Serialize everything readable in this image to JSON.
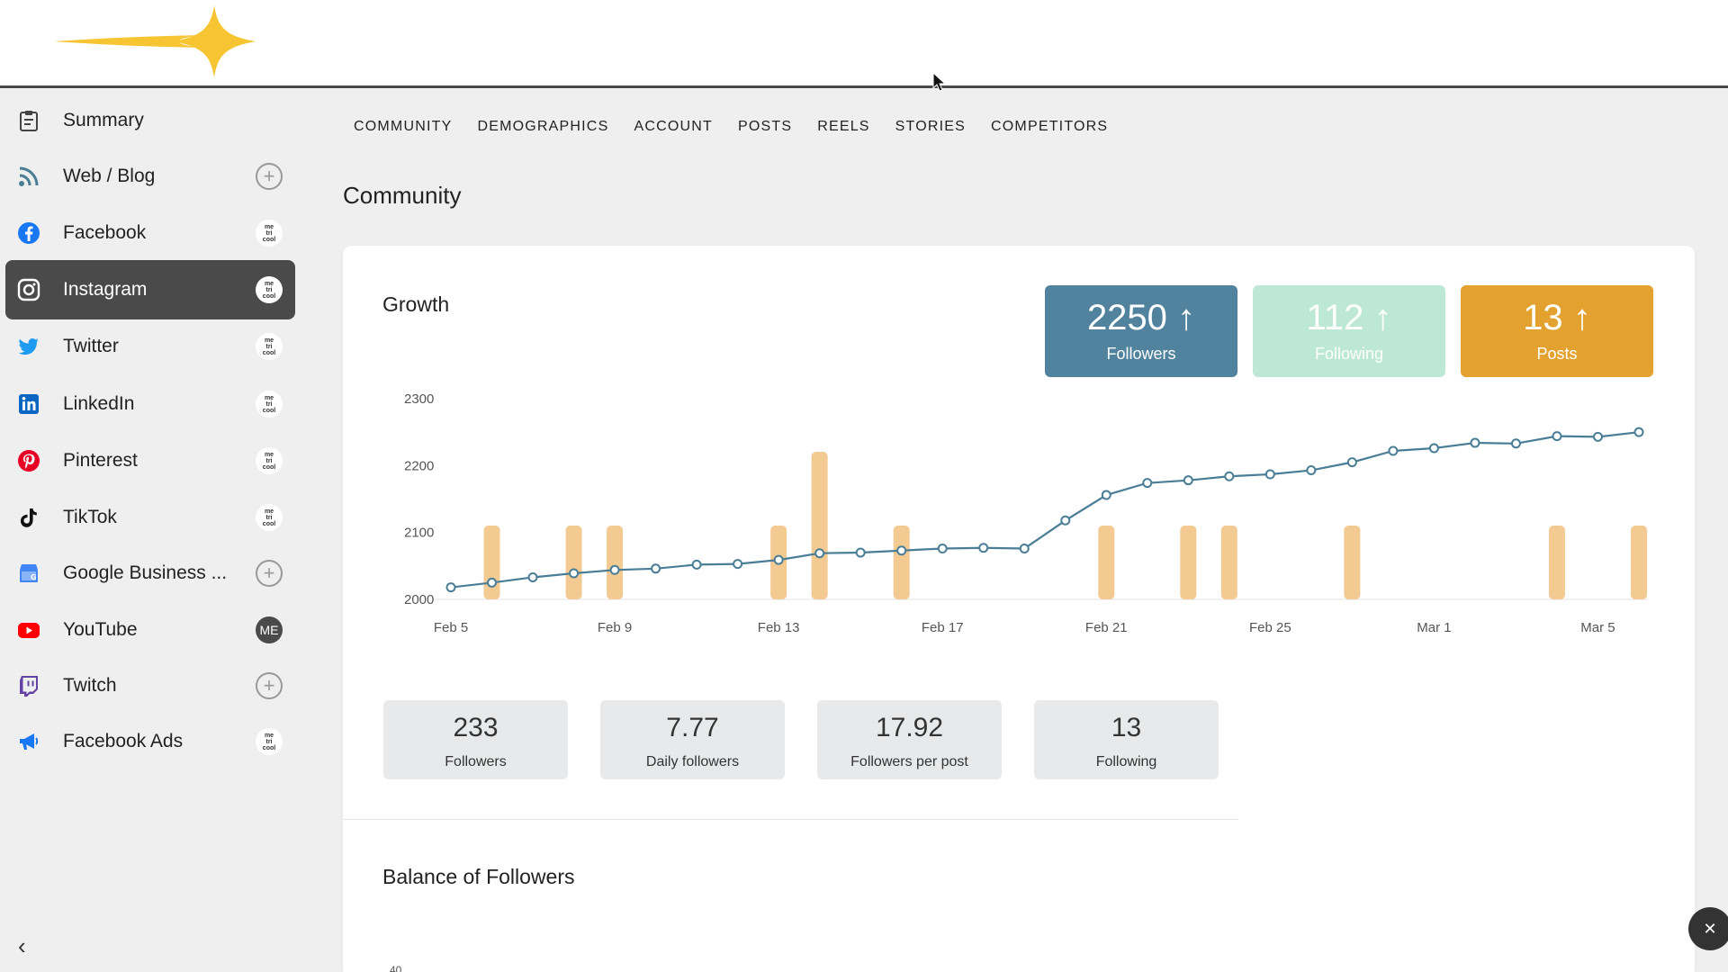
{
  "tabs": [
    "COMMUNITY",
    "DEMOGRAPHICS",
    "ACCOUNT",
    "POSTS",
    "REELS",
    "STORIES",
    "COMPETITORS"
  ],
  "page_title": "Community",
  "sidebar": {
    "items": [
      {
        "label": "Summary",
        "icon": "clipboard-icon",
        "badge": "",
        "badge_type": "none",
        "active": false
      },
      {
        "label": "Web / Blog",
        "icon": "rss-icon",
        "badge": "+",
        "badge_type": "plus",
        "active": false
      },
      {
        "label": "Facebook",
        "icon": "facebook-icon",
        "badge": "me tri cool",
        "badge_type": "logo",
        "active": false
      },
      {
        "label": "Instagram",
        "icon": "instagram-icon",
        "badge": "me tri cool",
        "badge_type": "logo",
        "active": true
      },
      {
        "label": "Twitter",
        "icon": "twitter-icon",
        "badge": "me tri cool",
        "badge_type": "logo",
        "active": false
      },
      {
        "label": "LinkedIn",
        "icon": "linkedin-icon",
        "badge": "me tri cool",
        "badge_type": "logo",
        "active": false
      },
      {
        "label": "Pinterest",
        "icon": "pinterest-icon",
        "badge": "me tri cool",
        "badge_type": "logo",
        "active": false
      },
      {
        "label": "TikTok",
        "icon": "tiktok-icon",
        "badge": "me tri cool",
        "badge_type": "logo",
        "active": false
      },
      {
        "label": "Google Business ...",
        "icon": "google-business-icon",
        "badge": "+",
        "badge_type": "plus",
        "active": false
      },
      {
        "label": "YouTube",
        "icon": "youtube-icon",
        "badge": "ME",
        "badge_type": "me",
        "active": false
      },
      {
        "label": "Twitch",
        "icon": "twitch-icon",
        "badge": "+",
        "badge_type": "plus",
        "active": false
      },
      {
        "label": "Facebook Ads",
        "icon": "megaphone-icon",
        "badge": "me tri cool",
        "badge_type": "logo",
        "active": false
      }
    ],
    "collapse_glyph": "‹"
  },
  "growth": {
    "title": "Growth",
    "kpis": [
      {
        "value": "2250",
        "label": "Followers",
        "trend": "↑",
        "color": "#51839e"
      },
      {
        "value": "112",
        "label": "Following",
        "trend": "↑",
        "color": "#bde8d5"
      },
      {
        "value": "13",
        "label": "Posts",
        "trend": "↑",
        "color": "#e3a12f"
      }
    ]
  },
  "chart_data": {
    "type": "line",
    "xlabel": "",
    "ylabel": "",
    "yticks": [
      2000,
      2100,
      2200,
      2300
    ],
    "ylim": [
      2000,
      2300
    ],
    "xticks": [
      "Feb 5",
      "Feb 9",
      "Feb 13",
      "Feb 17",
      "Feb 21",
      "Feb 25",
      "Mar 1",
      "Mar 5"
    ],
    "x": [
      "Feb 5",
      "Feb 6",
      "Feb 7",
      "Feb 8",
      "Feb 9",
      "Feb 10",
      "Feb 11",
      "Feb 12",
      "Feb 13",
      "Feb 14",
      "Feb 15",
      "Feb 16",
      "Feb 17",
      "Feb 18",
      "Feb 19",
      "Feb 20",
      "Feb 21",
      "Feb 22",
      "Feb 23",
      "Feb 24",
      "Feb 25",
      "Feb 26",
      "Feb 27",
      "Feb 28",
      "Mar 1",
      "Mar 2",
      "Mar 3",
      "Mar 4",
      "Mar 5",
      "Mar 6"
    ],
    "series": [
      {
        "kind": "line",
        "color": "#4a7d96",
        "values": [
          2018,
          2025,
          2033,
          2039,
          2044,
          2046,
          2052,
          2053,
          2059,
          2069,
          2070,
          2073,
          2076,
          2077,
          2076,
          2118,
          2156,
          2174,
          2178,
          2184,
          2187,
          2193,
          2205,
          2222,
          2226,
          2234,
          2233,
          2244,
          2243,
          2250
        ]
      },
      {
        "kind": "bar",
        "color": "#f2ca92",
        "values": [
          0,
          1,
          0,
          1,
          1,
          0,
          0,
          0,
          1,
          2,
          0,
          1,
          0,
          0,
          0,
          0,
          1,
          0,
          1,
          1,
          0,
          0,
          1,
          0,
          0,
          0,
          0,
          1,
          0,
          1
        ]
      }
    ]
  },
  "stats": [
    {
      "value": "233",
      "label": "Followers"
    },
    {
      "value": "7.77",
      "label": "Daily followers"
    },
    {
      "value": "17.92",
      "label": "Followers per post"
    },
    {
      "value": "13",
      "label": "Following"
    }
  ],
  "balance": {
    "title": "Balance of Followers",
    "partial_tick": "40"
  },
  "help_glyph": "✕"
}
